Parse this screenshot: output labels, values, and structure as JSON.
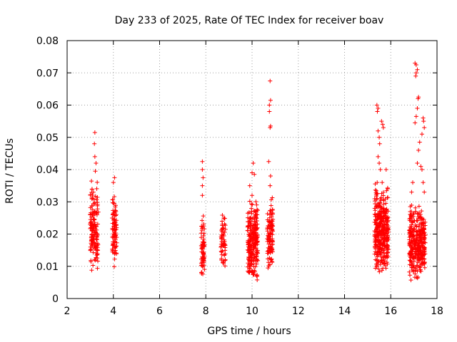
{
  "chart_data": {
    "type": "scatter",
    "title": "Day 233 of 2025, Rate Of TEC Index for receiver boav",
    "xlabel": "GPS time / hours",
    "ylabel": "ROTI / TECUs",
    "xlim": [
      2,
      18
    ],
    "ylim": [
      0,
      0.08
    ],
    "xticks": [
      "2",
      "4",
      "6",
      "8",
      "10",
      "12",
      "14",
      "16",
      "18"
    ],
    "yticks": [
      "0",
      "0.01",
      "0.02",
      "0.03",
      "0.04",
      "0.05",
      "0.06",
      "0.07",
      "0.08"
    ],
    "grid": true,
    "marker": "plus",
    "marker_color": "#ff0000",
    "clusters": [
      {
        "x": [
          3.0,
          3.35
        ],
        "y": [
          0.008,
          0.038
        ],
        "n": 160,
        "peaks": [
          [
            3.2,
            0.0515
          ],
          [
            3.18,
            0.048
          ],
          [
            3.2,
            0.044
          ],
          [
            3.25,
            0.042
          ],
          [
            3.22,
            0.0395
          ]
        ]
      },
      {
        "x": [
          3.95,
          4.15
        ],
        "y": [
          0.009,
          0.034
        ],
        "n": 90,
        "peaks": [
          [
            4.05,
            0.0375
          ],
          [
            4.0,
            0.036
          ]
        ]
      },
      {
        "x": [
          7.8,
          7.95
        ],
        "y": [
          0.006,
          0.028
        ],
        "n": 70,
        "peaks": [
          [
            7.85,
            0.0425
          ],
          [
            7.85,
            0.04
          ],
          [
            7.88,
            0.0375
          ],
          [
            7.85,
            0.035
          ],
          [
            7.85,
            0.032
          ]
        ]
      },
      {
        "x": [
          8.65,
          8.85
        ],
        "y": [
          0.009,
          0.028
        ],
        "n": 60,
        "peaks": []
      },
      {
        "x": [
          9.8,
          10.25
        ],
        "y": [
          0.005,
          0.032
        ],
        "n": 260,
        "peaks": [
          [
            10.05,
            0.042
          ],
          [
            10.0,
            0.039
          ],
          [
            10.1,
            0.0385
          ],
          [
            9.9,
            0.035
          ]
        ]
      },
      {
        "x": [
          10.65,
          10.9
        ],
        "y": [
          0.008,
          0.032
        ],
        "n": 110,
        "peaks": [
          [
            10.78,
            0.0675
          ],
          [
            10.8,
            0.0615
          ],
          [
            10.75,
            0.06
          ],
          [
            10.75,
            0.058
          ],
          [
            10.8,
            0.0535
          ],
          [
            10.78,
            0.053
          ],
          [
            10.72,
            0.0425
          ],
          [
            10.8,
            0.038
          ],
          [
            10.78,
            0.035
          ]
        ]
      },
      {
        "x": [
          15.3,
          15.9
        ],
        "y": [
          0.007,
          0.036
        ],
        "n": 380,
        "peaks": [
          [
            15.4,
            0.06
          ],
          [
            15.45,
            0.059
          ],
          [
            15.42,
            0.058
          ],
          [
            15.6,
            0.055
          ],
          [
            15.65,
            0.054
          ],
          [
            15.68,
            0.053
          ],
          [
            15.45,
            0.052
          ],
          [
            15.5,
            0.05
          ],
          [
            15.52,
            0.048
          ],
          [
            15.45,
            0.044
          ],
          [
            15.5,
            0.042
          ],
          [
            15.55,
            0.04
          ],
          [
            15.8,
            0.04
          ]
        ]
      },
      {
        "x": [
          16.8,
          17.5
        ],
        "y": [
          0.005,
          0.03
        ],
        "n": 360,
        "peaks": [
          [
            17.05,
            0.073
          ],
          [
            17.1,
            0.0725
          ],
          [
            17.15,
            0.071
          ],
          [
            17.1,
            0.07
          ],
          [
            17.08,
            0.069
          ],
          [
            17.2,
            0.0625
          ],
          [
            17.18,
            0.062
          ],
          [
            17.15,
            0.059
          ],
          [
            17.1,
            0.0565
          ],
          [
            17.05,
            0.0545
          ],
          [
            17.4,
            0.056
          ],
          [
            17.42,
            0.055
          ],
          [
            17.45,
            0.053
          ],
          [
            17.35,
            0.051
          ],
          [
            17.25,
            0.0485
          ],
          [
            17.2,
            0.046
          ],
          [
            17.15,
            0.042
          ],
          [
            17.3,
            0.041
          ],
          [
            17.35,
            0.04
          ],
          [
            17.4,
            0.036
          ],
          [
            17.45,
            0.033
          ],
          [
            16.95,
            0.036
          ],
          [
            16.9,
            0.033
          ]
        ]
      }
    ]
  }
}
